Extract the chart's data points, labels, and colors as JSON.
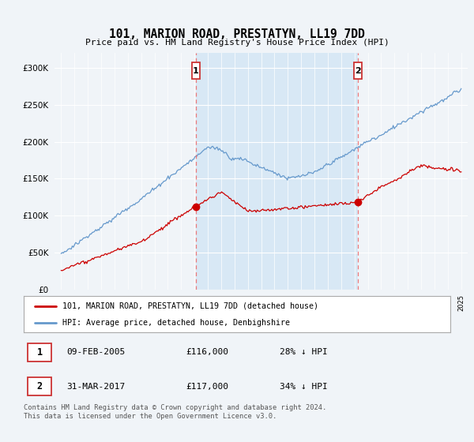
{
  "title": "101, MARION ROAD, PRESTATYN, LL19 7DD",
  "subtitle": "Price paid vs. HM Land Registry's House Price Index (HPI)",
  "bg_color": "#f0f4f8",
  "plot_bg_color": "#f0f4f8",
  "shade_color": "#d8e8f5",
  "red_color": "#cc0000",
  "blue_color": "#6699cc",
  "dashed_color": "#ee6666",
  "marker1_x": 2005.1,
  "marker2_x": 2017.25,
  "legend1": "101, MARION ROAD, PRESTATYN, LL19 7DD (detached house)",
  "legend2": "HPI: Average price, detached house, Denbighshire",
  "ann1_date": "09-FEB-2005",
  "ann1_price": "£116,000",
  "ann1_hpi": "28% ↓ HPI",
  "ann2_date": "31-MAR-2017",
  "ann2_price": "£117,000",
  "ann2_hpi": "34% ↓ HPI",
  "footer": "Contains HM Land Registry data © Crown copyright and database right 2024.\nThis data is licensed under the Open Government Licence v3.0.",
  "ylim": [
    0,
    320000
  ],
  "yticks": [
    0,
    50000,
    100000,
    150000,
    200000,
    250000,
    300000
  ],
  "xlim": [
    1994.5,
    2025.5
  ]
}
